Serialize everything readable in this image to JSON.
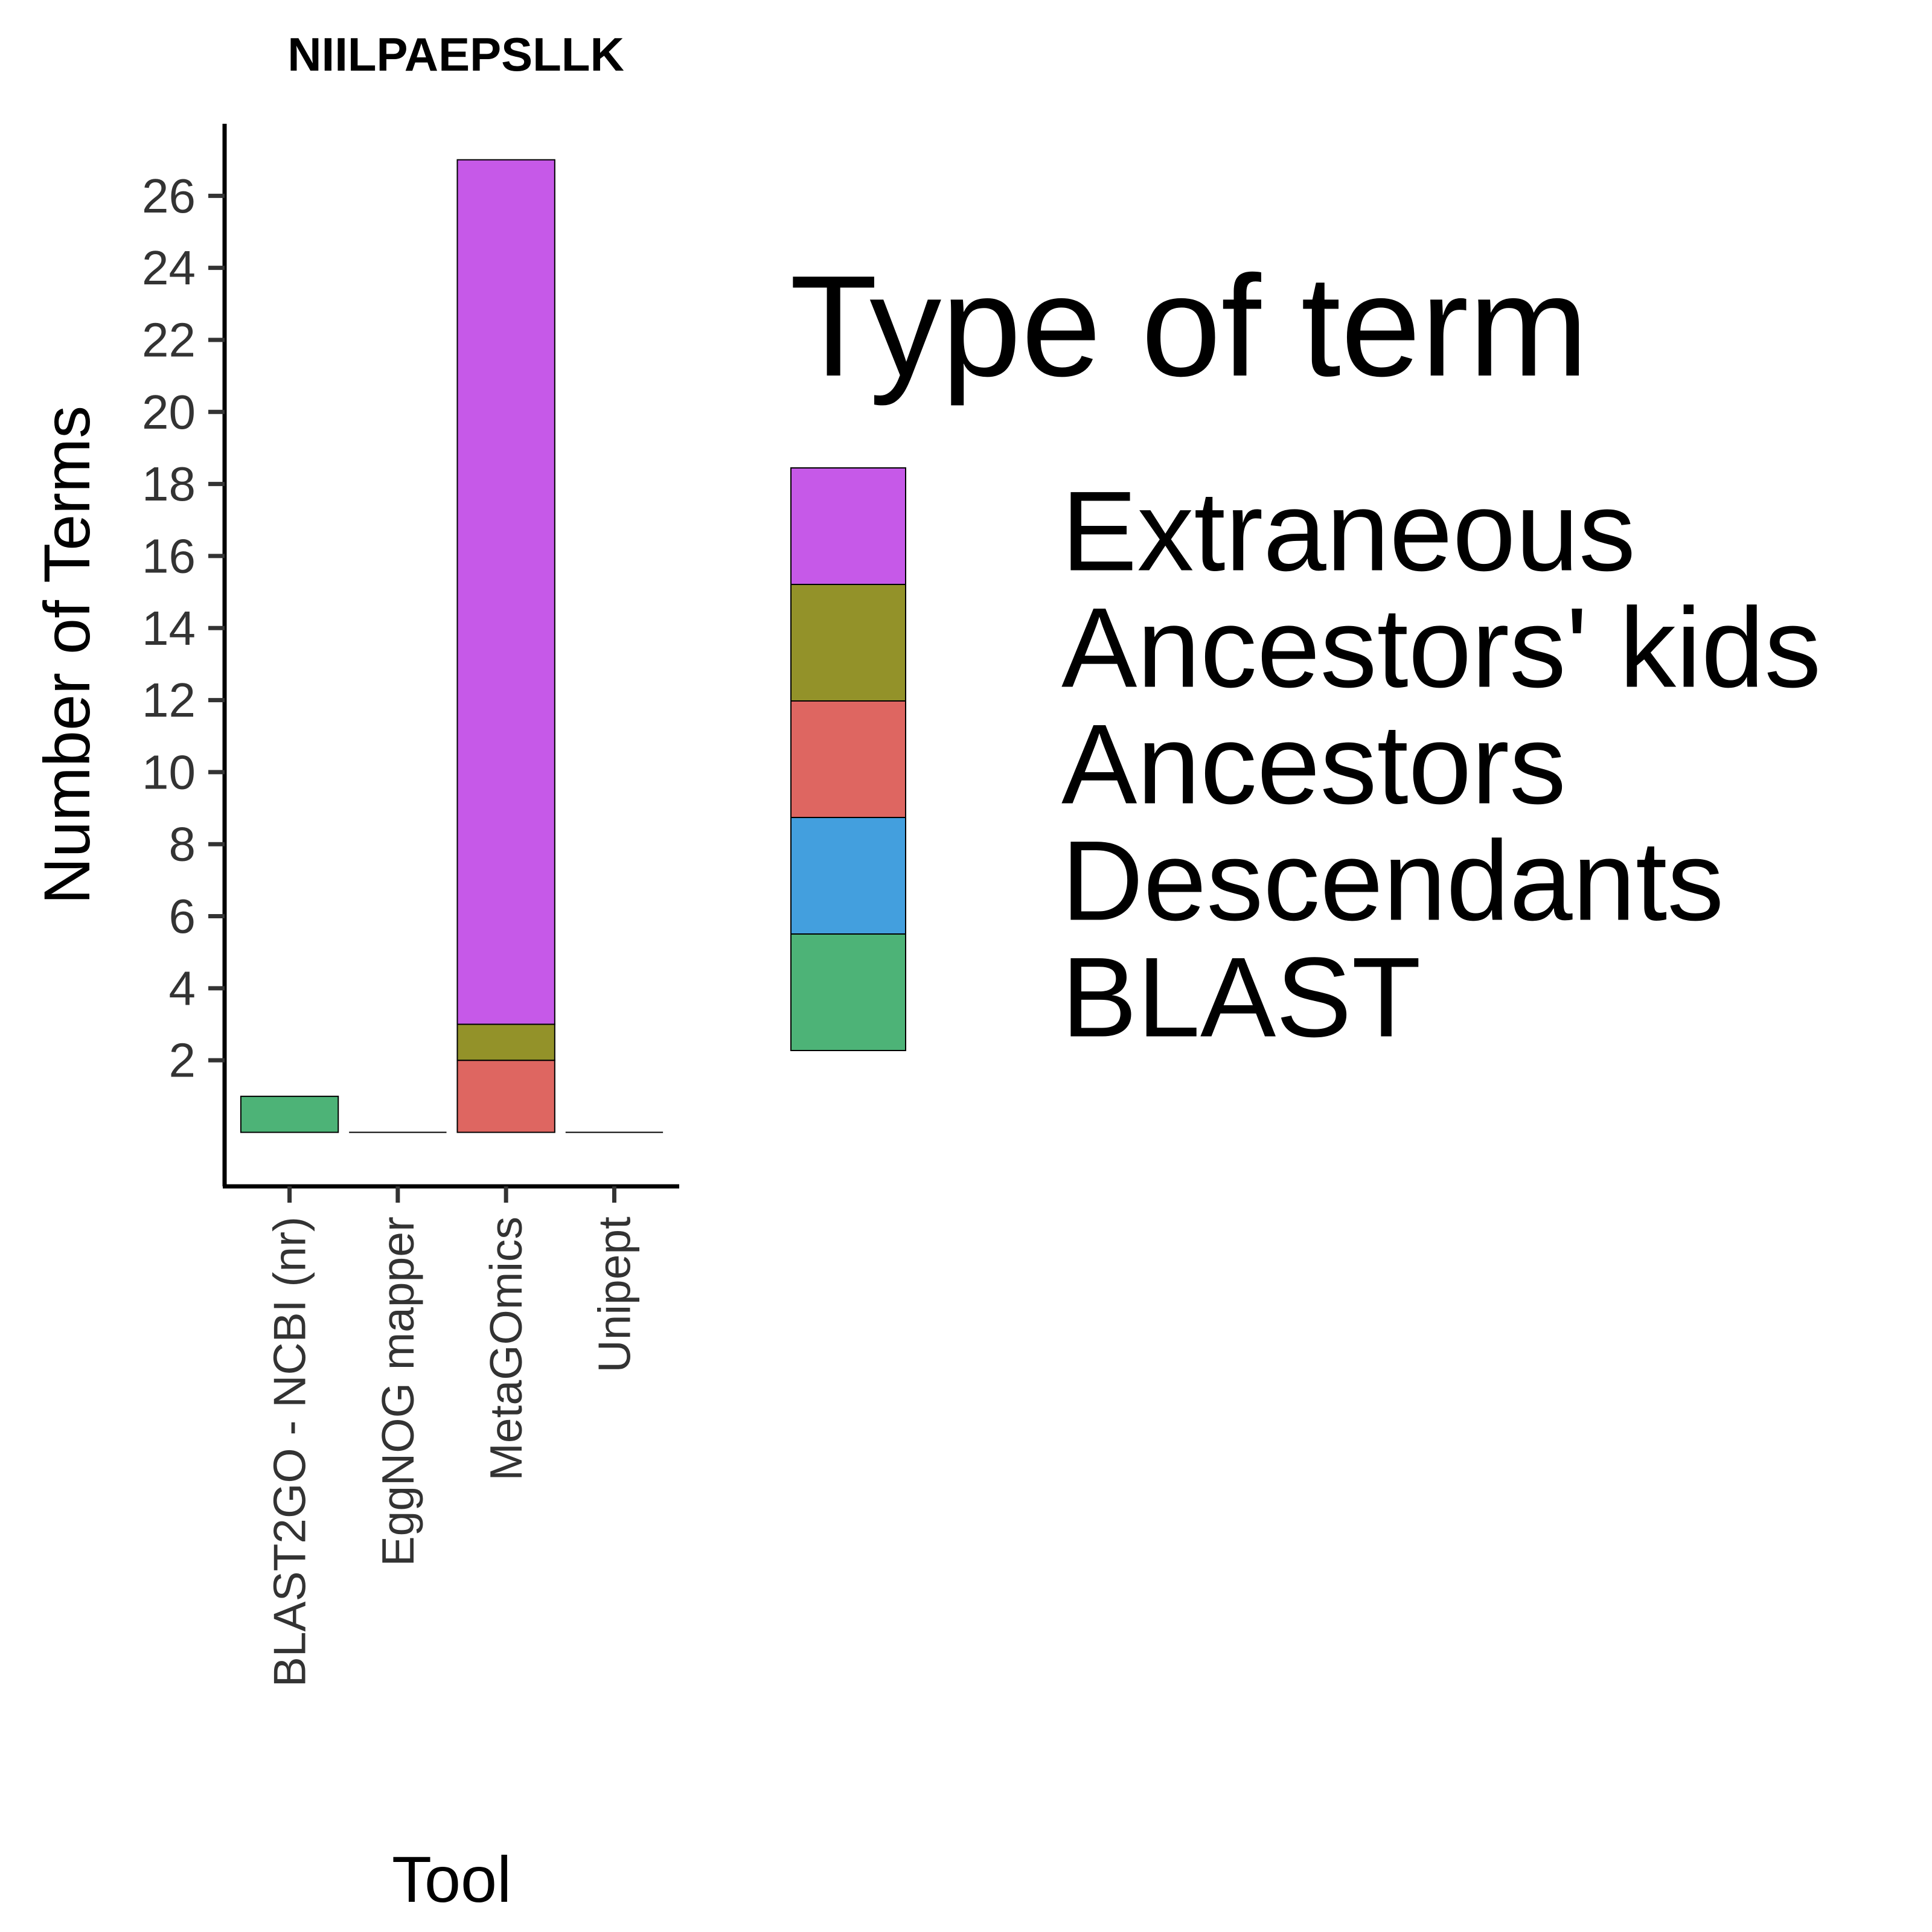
{
  "chart_data": {
    "type": "bar",
    "stacked": true,
    "title": "NIILPAEPSLLK",
    "xlabel": "Tool",
    "ylabel": "Number of Terms",
    "categories": [
      "BLAST2GO - NCBI (nr)",
      "EggNOG mapper",
      "MetaGOmics",
      "Unipept"
    ],
    "ylim": [
      -1.5,
      28
    ],
    "y_ticks": [
      2,
      4,
      6,
      8,
      10,
      12,
      14,
      16,
      18,
      20,
      22,
      24,
      26
    ],
    "series": [
      {
        "name": "BLAST",
        "color": "#4db377",
        "values": [
          1,
          0,
          0,
          0
        ]
      },
      {
        "name": "Descendants",
        "color": "#439fde",
        "values": [
          0,
          0,
          0,
          0
        ]
      },
      {
        "name": "Ancestors",
        "color": "#de6661",
        "values": [
          0,
          0,
          2,
          0
        ]
      },
      {
        "name": "Ancestors' kids",
        "color": "#939229",
        "values": [
          0,
          0,
          1,
          0
        ]
      },
      {
        "name": "Extraneous",
        "color": "#c659e8",
        "values": [
          0,
          0,
          24,
          0
        ]
      }
    ],
    "legend": {
      "title": "Type of term",
      "placement": "right",
      "order": [
        "Extraneous",
        "Ancestors' kids",
        "Ancestors",
        "Descendants",
        "BLAST"
      ]
    },
    "grid": false
  }
}
